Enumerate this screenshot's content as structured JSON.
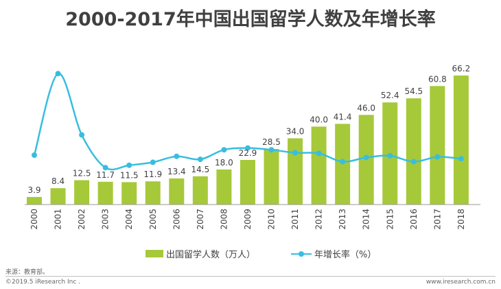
{
  "title": "2000-2017年中国出国留学人数及年增长率",
  "source": "来源：教育部。",
  "copyright": "©2019.5 iResearch Inc .",
  "website": "www.iresearch.com.cn",
  "colors": {
    "bar": "#a6c93a",
    "line": "#38bde0",
    "text": "#404040",
    "axis": "#999999"
  },
  "chart_data": {
    "type": "bar",
    "title": "2000-2017年中国出国留学人数及年增长率",
    "categories": [
      "2000",
      "2001",
      "2002",
      "2003",
      "2004",
      "2005",
      "2006",
      "2007",
      "2008",
      "2009",
      "2010",
      "2011",
      "2012",
      "2013",
      "2014",
      "2015",
      "2016",
      "2017",
      "2018"
    ],
    "series": [
      {
        "name": "出国留学人数（万人）",
        "type": "bar",
        "values": [
          3.9,
          8.4,
          12.5,
          11.7,
          11.5,
          11.9,
          13.4,
          14.5,
          18.0,
          22.9,
          28.5,
          34.0,
          40.0,
          41.4,
          46.0,
          52.4,
          54.5,
          60.8,
          66.2
        ]
      },
      {
        "name": "年增长率（%）",
        "type": "line",
        "values": [
          15,
          152,
          49,
          -6,
          -2,
          3,
          13,
          8,
          24,
          27,
          24,
          19,
          18,
          4,
          11,
          14,
          4,
          12,
          9
        ]
      }
    ],
    "legend_position": "bottom",
    "grid": false
  }
}
